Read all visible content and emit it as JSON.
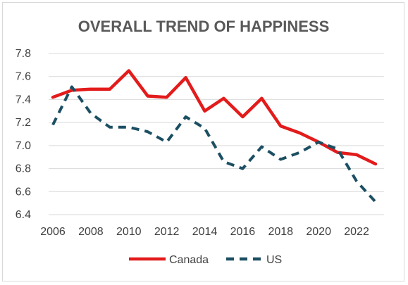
{
  "chart_data": {
    "type": "line",
    "title": "OVERALL TREND OF HAPPINESS",
    "xlabel": "",
    "ylabel": "",
    "x": [
      2006,
      2007,
      2008,
      2009,
      2010,
      2011,
      2012,
      2013,
      2014,
      2015,
      2016,
      2017,
      2018,
      2019,
      2020,
      2021,
      2022,
      2023
    ],
    "xticks": [
      2006,
      2008,
      2010,
      2012,
      2014,
      2016,
      2018,
      2020,
      2022
    ],
    "xlim": [
      2006,
      2023
    ],
    "ylim": [
      6.4,
      7.8
    ],
    "yticks": [
      "6.4",
      "6.6",
      "6.8",
      "7.0",
      "7.2",
      "7.4",
      "7.6",
      "7.8"
    ],
    "grid": "horizontal",
    "legend_position": "bottom",
    "series": [
      {
        "name": "Canada",
        "color": "#e31b1b",
        "style": "solid",
        "values": [
          7.42,
          7.48,
          7.49,
          7.49,
          7.65,
          7.43,
          7.42,
          7.59,
          7.3,
          7.41,
          7.25,
          7.41,
          7.17,
          7.11,
          7.03,
          6.94,
          6.92,
          6.84
        ]
      },
      {
        "name": "US",
        "color": "#1b4f62",
        "style": "dashed",
        "values": [
          7.18,
          7.51,
          7.28,
          7.16,
          7.16,
          7.12,
          7.03,
          7.25,
          7.15,
          6.86,
          6.8,
          6.99,
          6.88,
          6.94,
          7.03,
          6.97,
          6.69,
          6.51
        ]
      }
    ]
  }
}
